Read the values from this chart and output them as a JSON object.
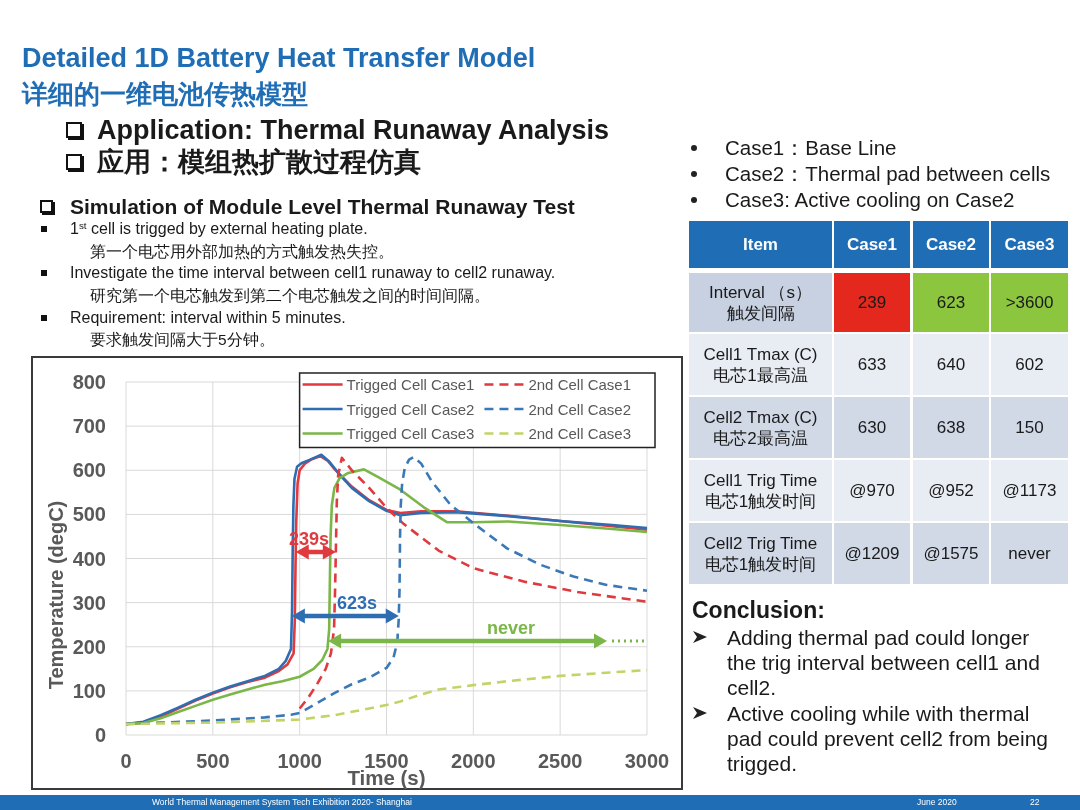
{
  "chart_data": [
    {
      "type": "other",
      "title": "Detailed 1D Battery Heat Transfer Model",
      "subtitle": "详细的一维电池传热模型",
      "annotations": [
        "Application: Thermal Runaway Analysis",
        "应用：模组热扩散过程仿真",
        "Simulation of Module Level Thermal Runaway Test",
        "1$^{st}$ cell is trigged by external heating plate.",
        "第一个电芯用外部加热的方式触发热失控。",
        "Investigate the time interval between cell1 runaway to cell2 runaway.",
        "研究第一个电芯触发到第二个电芯触发之间的时间间隔。",
        "Requirement: interval within 5 minutes.",
        "要求触发间隔大于5分钟。"
      ]
    },
    {
      "type": "line",
      "xlabel": "Time (s)",
      "ylabel": "Temperature (degC)",
      "xlim": [
        0,
        3000
      ],
      "ylim": [
        0,
        800
      ],
      "xticks": [
        0,
        500,
        1000,
        1500,
        2000,
        2500,
        3000
      ],
      "yticks": [
        0,
        100,
        200,
        300,
        400,
        500,
        600,
        700,
        800
      ],
      "grid": true,
      "legend": "top right",
      "series": [
        {
          "name": "Trigged Cell Case1",
          "color": "#e0393e",
          "line_style": "solid",
          "x": [
            0,
            100,
            200,
            300,
            400,
            500,
            600,
            700,
            800,
            880,
            930,
            965,
            972,
            976,
            980,
            988,
            1000,
            1030,
            1070,
            1120,
            1160,
            1200,
            1300,
            1400,
            1500,
            1580,
            1700,
            1900,
            2200,
            2500,
            2800,
            3000
          ],
          "values": [
            25,
            28,
            42,
            60,
            78,
            94,
            108,
            120,
            130,
            145,
            160,
            185,
            260,
            380,
            480,
            570,
            600,
            615,
            625,
            632,
            622,
            603,
            563,
            532,
            510,
            503,
            507,
            507,
            497,
            485,
            473,
            465
          ]
        },
        {
          "name": "Trigged Cell Case2",
          "color": "#2f6db3",
          "line_style": "solid",
          "x": [
            0,
            100,
            200,
            300,
            400,
            500,
            600,
            700,
            800,
            880,
            920,
            950,
            956,
            960,
            964,
            970,
            985,
            1010,
            1060,
            1125,
            1170,
            1230,
            1300,
            1400,
            1500,
            1580,
            1700,
            1900,
            2200,
            2500,
            2800,
            3000
          ],
          "values": [
            25,
            30,
            45,
            62,
            80,
            96,
            110,
            122,
            134,
            150,
            168,
            195,
            280,
            420,
            520,
            580,
            608,
            616,
            624,
            635,
            620,
            590,
            560,
            530,
            508,
            498,
            503,
            505,
            496,
            485,
            476,
            469
          ]
        },
        {
          "name": "Trigged Cell Case3",
          "color": "#7ab648",
          "line_style": "solid",
          "x": [
            0,
            100,
            200,
            300,
            400,
            500,
            600,
            700,
            800,
            900,
            1000,
            1080,
            1130,
            1160,
            1170,
            1174,
            1178,
            1185,
            1200,
            1230,
            1280,
            1370,
            1450,
            1580,
            1715,
            1850,
            2000,
            2200,
            2500,
            2800,
            3000
          ],
          "values": [
            25,
            27,
            38,
            52,
            66,
            80,
            92,
            103,
            114,
            122,
            132,
            150,
            170,
            195,
            240,
            350,
            450,
            520,
            560,
            582,
            594,
            602,
            585,
            556,
            516,
            482,
            482,
            484,
            476,
            467,
            460
          ]
        },
        {
          "name": "2nd Cell Case1",
          "color": "#e0393e",
          "line_style": "dashed",
          "x": [
            1000,
            1050,
            1100,
            1150,
            1180,
            1198,
            1204,
            1209,
            1214,
            1222,
            1243,
            1300,
            1400,
            1500,
            1600,
            1800,
            2000,
            2300,
            2600,
            3000
          ],
          "values": [
            60,
            85,
            115,
            150,
            185,
            240,
            330,
            430,
            530,
            590,
            628,
            600,
            560,
            515,
            478,
            418,
            378,
            347,
            324,
            302
          ]
        },
        {
          "name": "2nd Cell Case2",
          "color": "#3b78b8",
          "line_style": "dashed",
          "x": [
            0,
            200,
            500,
            800,
            950,
            1000,
            1100,
            1200,
            1300,
            1400,
            1500,
            1540,
            1562,
            1570,
            1575,
            1578,
            1582,
            1590,
            1605,
            1630,
            1657,
            1700,
            1760,
            1868,
            2000,
            2194,
            2385,
            2577,
            2768,
            3000
          ],
          "values": [
            25,
            28,
            33,
            40,
            46,
            50,
            72,
            95,
            115,
            130,
            152,
            175,
            210,
            260,
            330,
            450,
            520,
            570,
            605,
            624,
            630,
            615,
            575,
            522,
            480,
            423,
            386,
            359,
            340,
            327
          ]
        },
        {
          "name": "2nd Cell Case3",
          "color": "#c3d467",
          "line_style": "dashed",
          "x": [
            0,
            500,
            1000,
            1200,
            1400,
            1500,
            1580,
            1700,
            1800,
            2000,
            2200,
            2500,
            2800,
            3000
          ],
          "values": [
            25,
            28,
            35,
            45,
            60,
            68,
            76,
            92,
            103,
            113,
            122,
            134,
            142,
            147
          ]
        }
      ],
      "annotations": [
        "239s",
        "623s",
        "never"
      ]
    },
    {
      "type": "other",
      "annotations": [
        "Case1：Base Line",
        "Case2：Thermal pad between cells",
        "Case3: Active cooling on Case2",
        "Item",
        "Case1",
        "Case2",
        "Case3",
        "Interval （s）",
        "触发间隔",
        "239",
        "623",
        ">3600",
        "Cell1 Tmax (C)",
        "电芯1最高温",
        "633",
        "640",
        "602",
        "Cell2 Tmax (C)",
        "电芯2最高温",
        "630",
        "638",
        "150",
        "Cell1 Trig Time",
        "电芯1触发时间",
        "@970",
        "@952",
        "@1173",
        "Cell2 Trig Time",
        "电芯1触发时间",
        "@1209",
        "@1575",
        "never",
        "Conclusion:",
        "Adding thermal pad could longer the trig interval between cell1 and cell2.",
        "Active cooling while with thermal pad could prevent cell2 from being trigged."
      ]
    },
    {
      "type": "other",
      "annotations": [
        "World Thermal Management System Tech Exhibition 2020- Shanghai",
        "June 2020",
        "22"
      ]
    }
  ]
}
